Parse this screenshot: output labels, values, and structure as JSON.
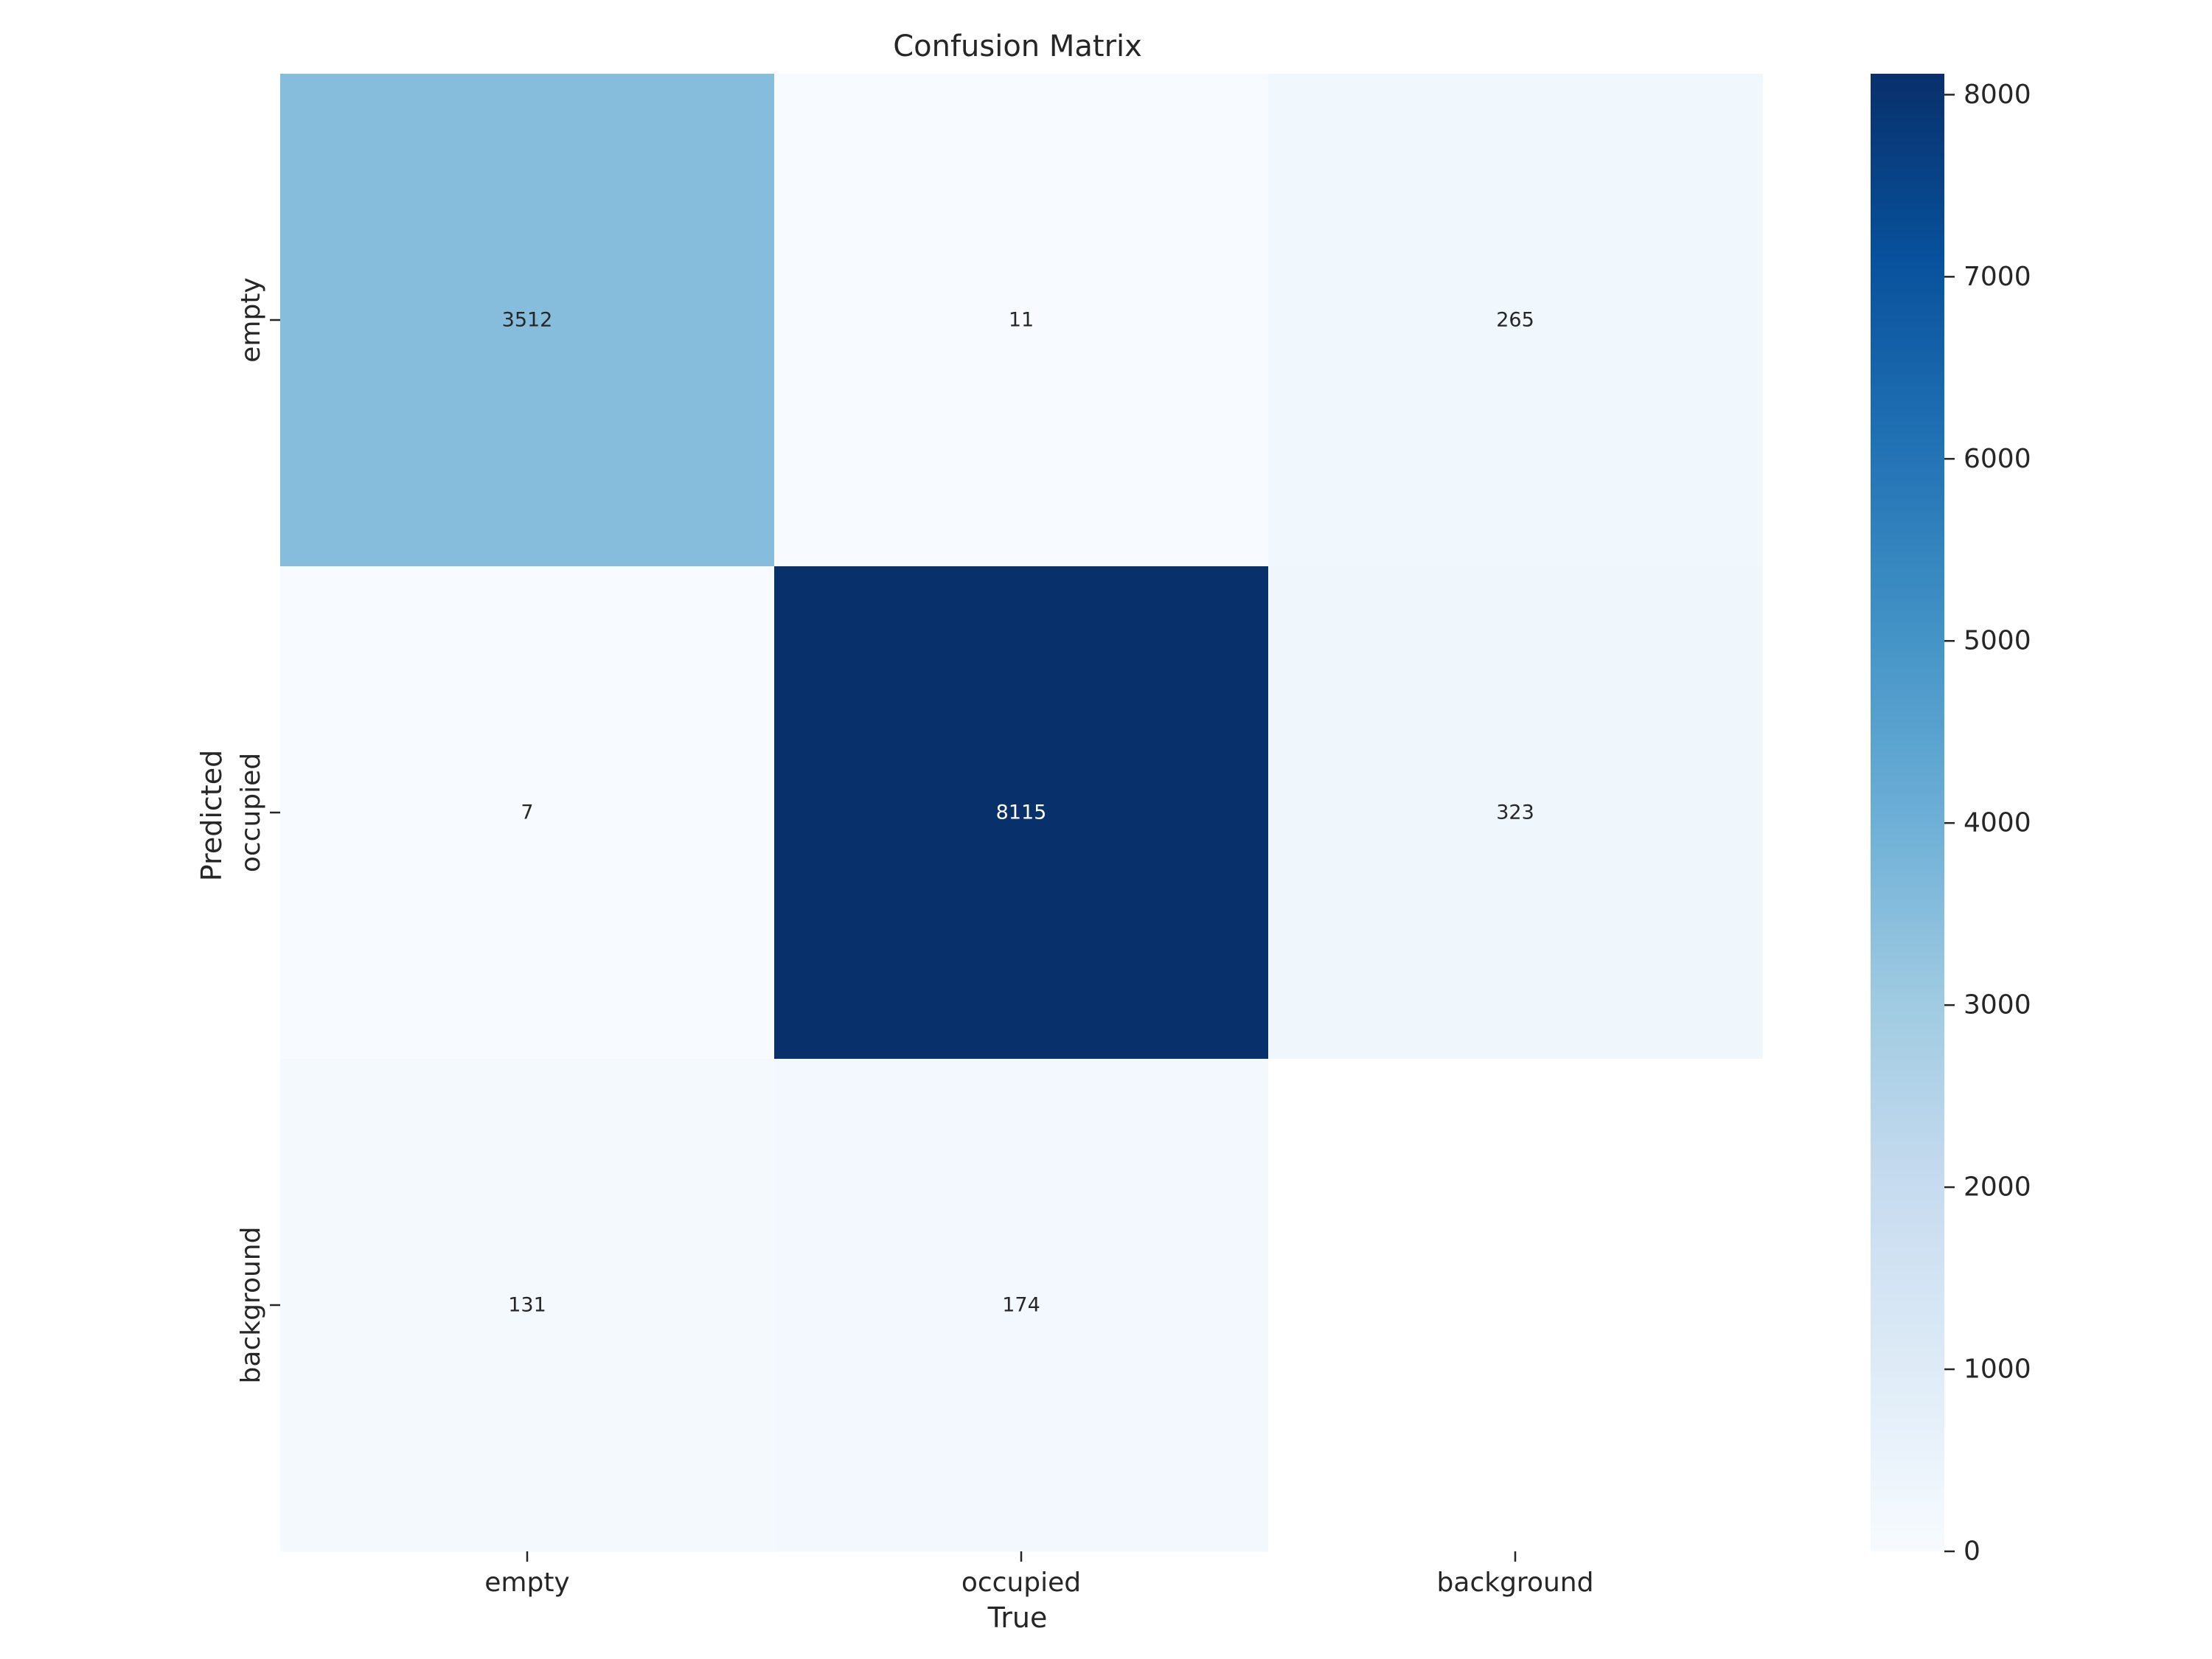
{
  "chart_data": {
    "type": "heatmap",
    "title": "Confusion Matrix",
    "xlabel": "True",
    "ylabel": "Predicted",
    "x_categories": [
      "empty",
      "occupied",
      "background"
    ],
    "y_categories": [
      "empty",
      "occupied",
      "background"
    ],
    "values": [
      [
        3512,
        11,
        265
      ],
      [
        7,
        8115,
        323
      ],
      [
        131,
        174,
        null
      ]
    ],
    "colormap": "Blues",
    "colorbar": {
      "range": [
        0,
        8115
      ],
      "ticks": [
        0,
        1000,
        2000,
        3000,
        4000,
        5000,
        6000,
        7000,
        8000
      ]
    },
    "empty_cell_color": "#ffffff"
  }
}
